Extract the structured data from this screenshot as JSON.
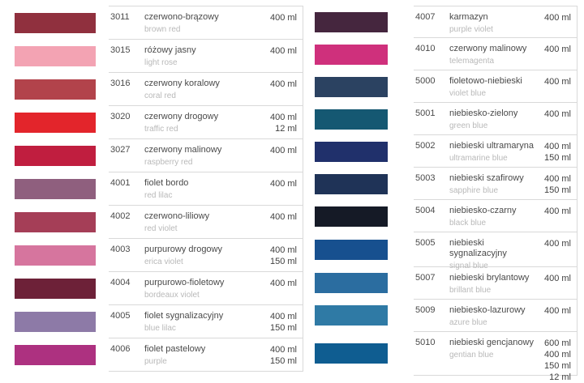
{
  "columns": [
    {
      "name": "left",
      "items": [
        {
          "code": "3011",
          "name_pl": "czerwono-brązowy",
          "name_en": "brown red",
          "volumes": [
            "400 ml"
          ],
          "color": "#90303e"
        },
        {
          "code": "3015",
          "name_pl": "różowy jasny",
          "name_en": "light rose",
          "volumes": [
            "400 ml"
          ],
          "color": "#f3a3b3"
        },
        {
          "code": "3016",
          "name_pl": "czerwony koralowy",
          "name_en": "coral red",
          "volumes": [
            "400 ml"
          ],
          "color": "#b2434b"
        },
        {
          "code": "3020",
          "name_pl": "czerwony drogowy",
          "name_en": "traffic red",
          "volumes": [
            "400 ml",
            "12 ml"
          ],
          "color": "#e3252b"
        },
        {
          "code": "3027",
          "name_pl": "czerwony malinowy",
          "name_en": "raspberry red",
          "volumes": [
            "400 ml"
          ],
          "color": "#c01e3f"
        },
        {
          "code": "4001",
          "name_pl": "fiolet bordo",
          "name_en": "red lilac",
          "volumes": [
            "400 ml"
          ],
          "color": "#8f5f7e"
        },
        {
          "code": "4002",
          "name_pl": "czerwono-liliowy",
          "name_en": "red violet",
          "volumes": [
            "400 ml"
          ],
          "color": "#a53e57"
        },
        {
          "code": "4003",
          "name_pl": "purpurowy drogowy",
          "name_en": "erica violet",
          "volumes": [
            "400 ml",
            "150 ml"
          ],
          "color": "#d6759e"
        },
        {
          "code": "4004",
          "name_pl": "purpurowo-fioletowy",
          "name_en": "bordeaux violet",
          "volumes": [
            "400 ml"
          ],
          "color": "#6d2138"
        },
        {
          "code": "4005",
          "name_pl": "fiolet sygnalizacyjny",
          "name_en": "blue lilac",
          "volumes": [
            "400 ml",
            "150 ml"
          ],
          "color": "#8d7aa7"
        },
        {
          "code": "4006",
          "name_pl": "fiolet pastelowy",
          "name_en": "purple",
          "volumes": [
            "400 ml",
            "150 ml"
          ],
          "color": "#ad3180"
        }
      ]
    },
    {
      "name": "right",
      "items": [
        {
          "code": "4007",
          "name_pl": "karmazyn",
          "name_en": "purple violet",
          "volumes": [
            "400 ml"
          ],
          "color": "#45263e"
        },
        {
          "code": "4010",
          "name_pl": "czerwony malinowy",
          "name_en": "telemagenta",
          "volumes": [
            "400 ml"
          ],
          "color": "#cf307c"
        },
        {
          "code": "5000",
          "name_pl": "fioletowo-niebieski",
          "name_en": "violet blue",
          "volumes": [
            "400 ml"
          ],
          "color": "#2b4261"
        },
        {
          "code": "5001",
          "name_pl": "niebiesko-zielony",
          "name_en": "green blue",
          "volumes": [
            "400 ml"
          ],
          "color": "#155872"
        },
        {
          "code": "5002",
          "name_pl": "niebieski ultramaryna",
          "name_en": "ultramarine blue",
          "volumes": [
            "400 ml",
            "150 ml"
          ],
          "color": "#20306b"
        },
        {
          "code": "5003",
          "name_pl": "niebieski szafirowy",
          "name_en": "sapphire blue",
          "volumes": [
            "400 ml",
            "150 ml"
          ],
          "color": "#1f3357"
        },
        {
          "code": "5004",
          "name_pl": "niebiesko-czarny",
          "name_en": "black blue",
          "volumes": [
            "400 ml"
          ],
          "color": "#151a26"
        },
        {
          "code": "5005",
          "name_pl": "niebieski sygnalizacyjny",
          "name_en": "signal blue",
          "volumes": [
            "400 ml"
          ],
          "color": "#17508f"
        },
        {
          "code": "5007",
          "name_pl": "niebieski brylantowy",
          "name_en": "brillant blue",
          "volumes": [
            "400 ml"
          ],
          "color": "#2b6da0"
        },
        {
          "code": "5009",
          "name_pl": "niebiesko-lazurowy",
          "name_en": "azure blue",
          "volumes": [
            "400 ml"
          ],
          "color": "#2f7aa5"
        },
        {
          "code": "5010",
          "name_pl": "niebieski gencjanowy",
          "name_en": "gentian blue",
          "volumes": [
            "600 ml",
            "400 ml",
            "150 ml",
            "12 ml"
          ],
          "color": "#0f5d91"
        }
      ]
    }
  ]
}
